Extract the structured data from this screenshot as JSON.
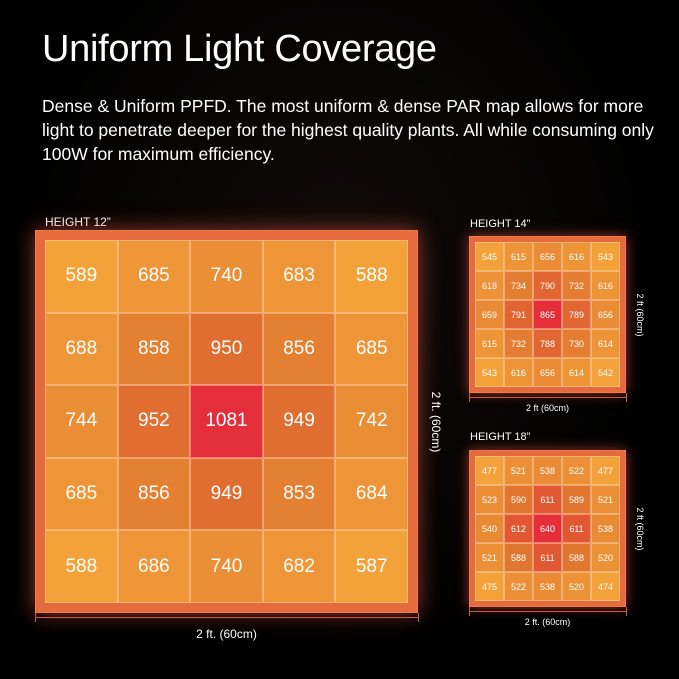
{
  "header": {
    "title": "Uniform Light Coverage",
    "description": "Dense & Uniform PPFD.  The most uniform & dense PAR map allows for more light to penetrate deeper for the highest quality plants. All while consuming only 100W for maximum efficiency."
  },
  "grids": [
    {
      "label": "HEIGHT 12”",
      "width_label": "2 ft. (60cm)",
      "height_label": "2 ft. (60cm)",
      "values": [
        [
          589,
          685,
          740,
          683,
          588
        ],
        [
          688,
          858,
          950,
          856,
          685
        ],
        [
          744,
          952,
          1081,
          949,
          742
        ],
        [
          685,
          856,
          949,
          853,
          684
        ],
        [
          588,
          686,
          740,
          682,
          587
        ]
      ]
    },
    {
      "label": "HEIGHT 14”",
      "width_label": "2 ft (60cm)",
      "height_label": "2 ft (60cm)",
      "values": [
        [
          545,
          615,
          656,
          616,
          543
        ],
        [
          618,
          734,
          790,
          732,
          616
        ],
        [
          659,
          791,
          865,
          789,
          656
        ],
        [
          615,
          732,
          788,
          730,
          614
        ],
        [
          543,
          616,
          656,
          614,
          542
        ]
      ]
    },
    {
      "label": "HEIGHT 18”",
      "width_label": "2 ft. (60cm)",
      "height_label": "2 ft (60cm)",
      "values": [
        [
          477,
          521,
          538,
          522,
          477
        ],
        [
          523,
          590,
          611,
          589,
          521
        ],
        [
          540,
          612,
          640,
          611,
          538
        ],
        [
          521,
          588,
          611,
          588,
          520
        ],
        [
          475,
          522,
          538,
          520,
          474
        ]
      ]
    }
  ]
}
